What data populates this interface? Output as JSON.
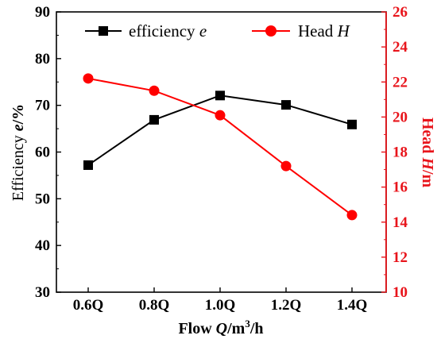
{
  "chart_data": {
    "type": "line",
    "categories": [
      "0.6Q",
      "0.8Q",
      "1.0Q",
      "1.2Q",
      "1.4Q"
    ],
    "series": [
      {
        "name_main": "efficiency ",
        "name_var": "e",
        "axis": "left",
        "color": "#000000",
        "marker": "square",
        "values": [
          57.2,
          66.9,
          72.1,
          70.1,
          65.9
        ]
      },
      {
        "name_main": "Head ",
        "name_var": "H",
        "axis": "right",
        "color": "#ff0000",
        "marker": "circle",
        "values": [
          22.2,
          21.5,
          20.1,
          17.2,
          14.4
        ]
      }
    ],
    "left_axis": {
      "label_main": "Efficiency  ",
      "label_var": "e",
      "label_unit": "/%",
      "range": [
        30,
        90
      ],
      "ticks": [
        "30",
        "40",
        "50",
        "60",
        "70",
        "80",
        "90"
      ],
      "color": "#000000"
    },
    "right_axis": {
      "label_main": "Head ",
      "label_var": "H",
      "label_unit": "/m",
      "range": [
        10,
        26
      ],
      "ticks": [
        "10",
        "12",
        "14",
        "16",
        "18",
        "20",
        "22",
        "24",
        "26"
      ],
      "color": "#e8141b"
    },
    "x_axis": {
      "label_main": "Flow ",
      "label_var": "Q",
      "label_unit": "/m",
      "label_sup": "3",
      "label_tail": "/h"
    },
    "legend_placement": "top",
    "grid": false
  }
}
